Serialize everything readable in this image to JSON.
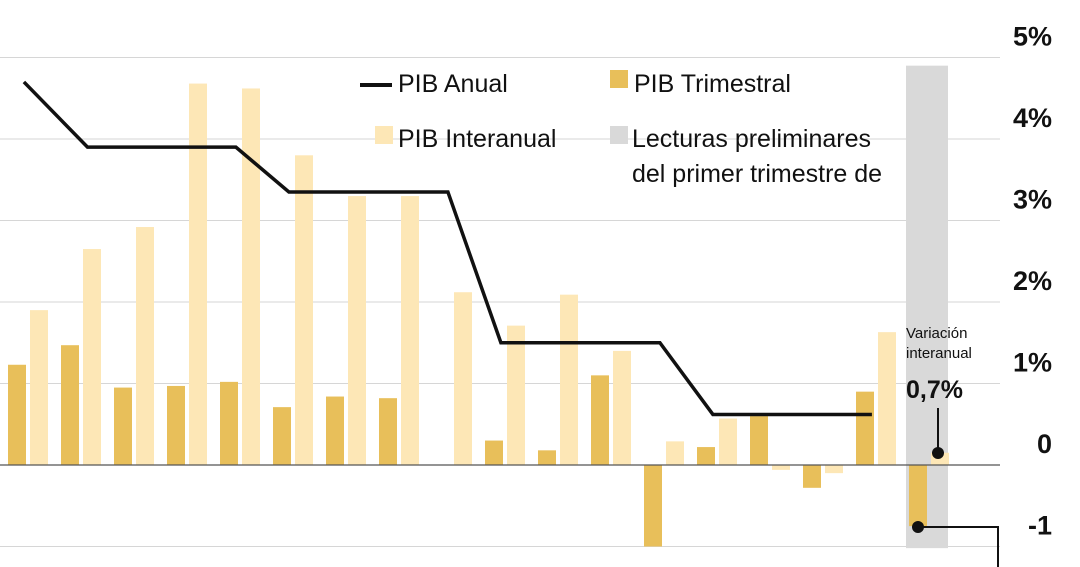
{
  "chart_data": {
    "type": "bar",
    "title": "",
    "xlabel": "",
    "ylabel": "",
    "ylim": [
      -1,
      5
    ],
    "y_ticks": [
      {
        "value": 5,
        "label": "5%"
      },
      {
        "value": 4,
        "label": "4%"
      },
      {
        "value": 3,
        "label": "3%"
      },
      {
        "value": 2,
        "label": "2%"
      },
      {
        "value": 1,
        "label": "1%"
      },
      {
        "value": 0,
        "label": "0"
      },
      {
        "value": -1,
        "label": "-1"
      }
    ],
    "grid": true,
    "legend_position": "top-center",
    "legend": {
      "anual": "PIB Anual",
      "trimestral": "PIB Trimestral",
      "interanual": "PIB Interanual",
      "preliminar_line1": "Lecturas preliminares",
      "preliminar_line2": "del primer trimestre de"
    },
    "colors": {
      "trimestral": "#e8bf5a",
      "interanual": "#fde7b6",
      "anual": "#111111",
      "preliminar": "#d9d9d9",
      "grid": "#d6d6d6"
    },
    "series": [
      {
        "name": "PIB Trimestral",
        "values": [
          1.23,
          1.47,
          0.95,
          0.97,
          1.02,
          0.71,
          0.84,
          0.82,
          null,
          0.3,
          0.18,
          1.1,
          -1.0,
          0.22,
          0.6,
          -0.28,
          0.9,
          -0.75
        ]
      },
      {
        "name": "PIB Interanual",
        "values": [
          1.9,
          2.65,
          2.92,
          4.68,
          4.62,
          3.8,
          3.3,
          3.3,
          2.12,
          1.71,
          2.09,
          1.4,
          0.29,
          0.57,
          -0.06,
          -0.1,
          1.63,
          0.15
        ]
      }
    ],
    "annual_line": [
      {
        "x": 0.3,
        "y": 4.7
      },
      {
        "x": 1.5,
        "y": 3.9
      },
      {
        "x": 4.3,
        "y": 3.9
      },
      {
        "x": 5.3,
        "y": 3.35
      },
      {
        "x": 8.3,
        "y": 3.35
      },
      {
        "x": 9.3,
        "y": 1.5
      },
      {
        "x": 12.3,
        "y": 1.5
      },
      {
        "x": 13.3,
        "y": 0.62
      },
      {
        "x": 16.3,
        "y": 0.62
      }
    ],
    "preliminary_index": 17,
    "annotation": {
      "line1": "Variación",
      "line2": "interanual",
      "value": "0,7%"
    }
  }
}
